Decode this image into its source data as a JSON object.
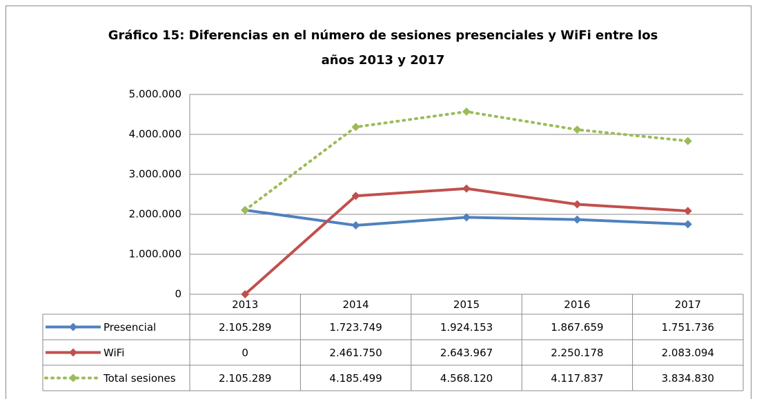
{
  "chart_data": {
    "type": "line",
    "title": [
      "Gráfico 15: Diferencias en el número de sesiones presenciales y WiFi entre los",
      "años 2013 y 2017"
    ],
    "categories": [
      "2013",
      "2014",
      "2015",
      "2016",
      "2017"
    ],
    "series": [
      {
        "name": "Presencial",
        "color": "#4f81bd",
        "dash": false,
        "values": [
          2105289,
          1723749,
          1924153,
          1867659,
          1751736
        ],
        "value_labels": [
          "2.105.289",
          "1.723.749",
          "1.924.153",
          "1.867.659",
          "1.751.736"
        ]
      },
      {
        "name": "WiFi",
        "color": "#c0504d",
        "dash": false,
        "values": [
          0,
          2461750,
          2643967,
          2250178,
          2083094
        ],
        "value_labels": [
          "0",
          "2.461.750",
          "2.643.967",
          "2.250.178",
          "2.083.094"
        ]
      },
      {
        "name": "Total sesiones",
        "color": "#9bbb59",
        "dash": true,
        "values": [
          2105289,
          4185499,
          4568120,
          4117837,
          3834830
        ],
        "value_labels": [
          "2.105.289",
          "4.185.499",
          "4.568.120",
          "4.117.837",
          "3.834.830"
        ]
      }
    ],
    "ylim": [
      0,
      5000000
    ],
    "yticks": [
      0,
      {
        "value": 1000000,
        "label": "1.000.000"
      },
      {
        "value": 2000000,
        "label": "2.000.000"
      },
      {
        "value": 3000000,
        "label": "3.000.000"
      },
      {
        "value": 4000000,
        "label": "4.000.000"
      },
      {
        "value": 5000000,
        "label": "5.000.000"
      }
    ],
    "grid": true
  }
}
